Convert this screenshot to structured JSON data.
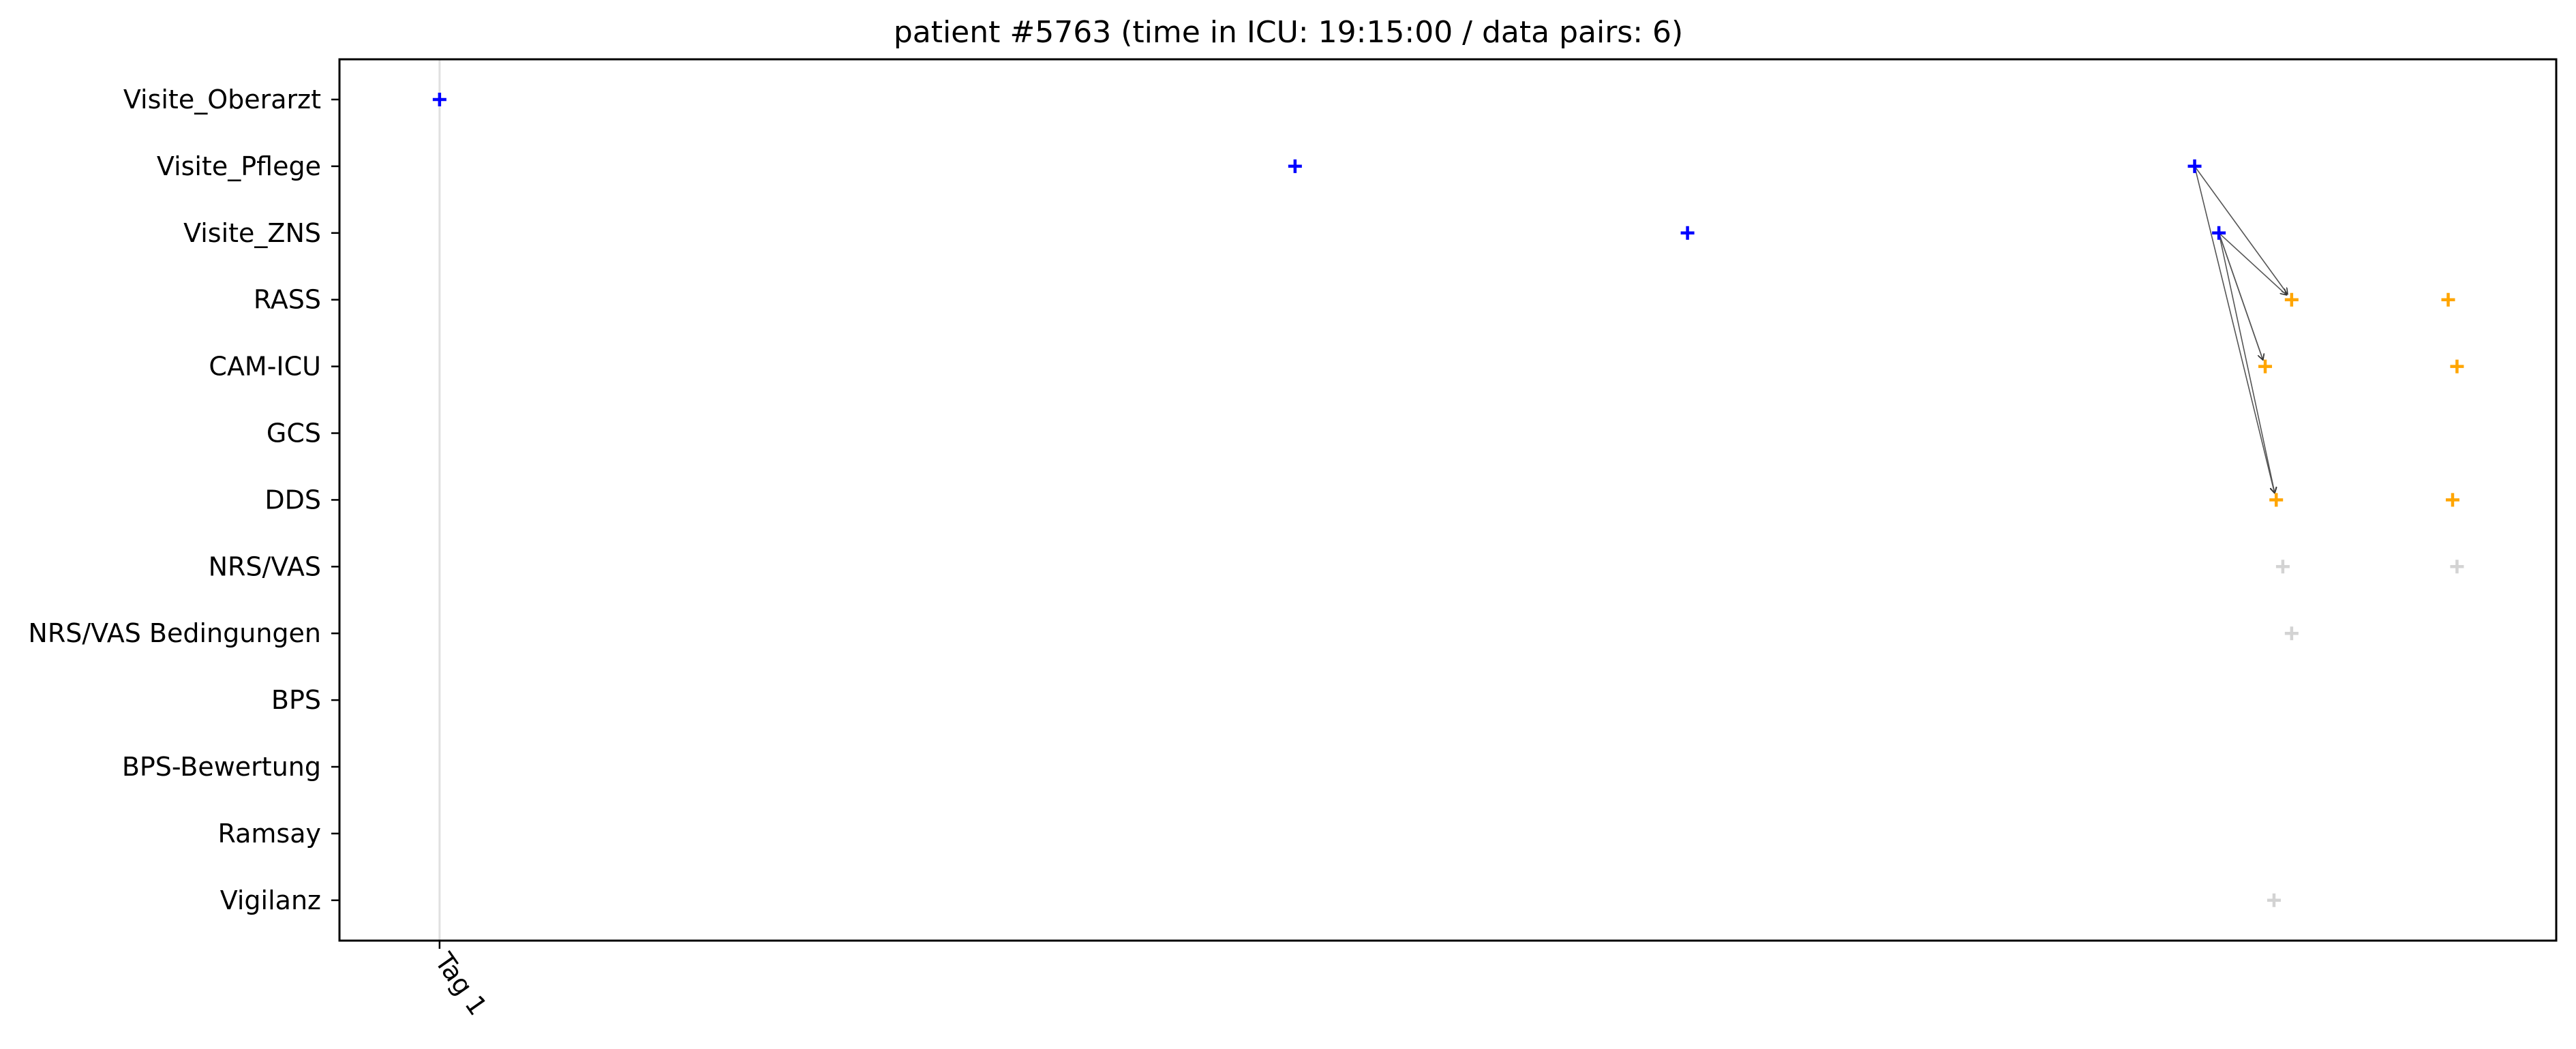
{
  "chart_data": {
    "type": "scatter",
    "title": "patient #5763 (time in ICU: 19:15:00 / data pairs: 6)",
    "xlabel": "",
    "ylabel": "",
    "x_unit": "hours since ICU admission",
    "xlim": [
      -2.27,
      48.0
    ],
    "x_ticks": [
      {
        "value": 0,
        "label": "Tag 1"
      }
    ],
    "categories": [
      "Visite_Oberarzt",
      "Visite_Pflege",
      "Visite_ZNS",
      "RASS",
      "CAM-ICU",
      "GCS",
      "DDS",
      "NRS/VAS",
      "NRS/VAS Bedingungen",
      "BPS",
      "BPS-Bewertung",
      "Ramsay",
      "Vigilanz"
    ],
    "grid": false,
    "legend": "none",
    "colors": {
      "visit": "#0000ff",
      "paired": "#ffa500",
      "other": "#d3d3d3",
      "arrow": "#555555",
      "day_line": "#e0e0e0"
    },
    "series": [
      {
        "color_key": "visit",
        "points": [
          {
            "x": 0.0,
            "y": "Visite_Oberarzt"
          },
          {
            "x": 19.4,
            "y": "Visite_Pflege"
          },
          {
            "x": 28.3,
            "y": "Visite_ZNS"
          },
          {
            "x": 39.8,
            "y": "Visite_Pflege"
          },
          {
            "x": 40.35,
            "y": "Visite_ZNS"
          }
        ]
      },
      {
        "color_key": "paired",
        "points": [
          {
            "x": 42.0,
            "y": "RASS"
          },
          {
            "x": 45.55,
            "y": "RASS"
          },
          {
            "x": 41.4,
            "y": "CAM-ICU"
          },
          {
            "x": 45.75,
            "y": "CAM-ICU"
          },
          {
            "x": 41.65,
            "y": "DDS"
          },
          {
            "x": 45.65,
            "y": "DDS"
          }
        ]
      },
      {
        "color_key": "other",
        "points": [
          {
            "x": 41.8,
            "y": "NRS/VAS"
          },
          {
            "x": 45.75,
            "y": "NRS/VAS"
          },
          {
            "x": 42.0,
            "y": "NRS/VAS Bedingungen"
          },
          {
            "x": 41.6,
            "y": "Vigilanz"
          }
        ]
      }
    ],
    "pairs": [
      {
        "from": {
          "x": 39.8,
          "y": "Visite_Pflege"
        },
        "to": {
          "x": 42.0,
          "y": "RASS"
        }
      },
      {
        "from": {
          "x": 39.8,
          "y": "Visite_Pflege"
        },
        "to": {
          "x": 41.65,
          "y": "DDS"
        }
      },
      {
        "from": {
          "x": 40.35,
          "y": "Visite_ZNS"
        },
        "to": {
          "x": 42.0,
          "y": "RASS"
        }
      },
      {
        "from": {
          "x": 40.35,
          "y": "Visite_ZNS"
        },
        "to": {
          "x": 41.4,
          "y": "CAM-ICU"
        }
      },
      {
        "from": {
          "x": 40.35,
          "y": "Visite_ZNS"
        },
        "to": {
          "x": 41.65,
          "y": "DDS"
        }
      },
      {
        "from": {
          "x": 40.35,
          "y": "Visite_ZNS"
        },
        "to": {
          "x": 41.4,
          "y": "CAM-ICU"
        }
      }
    ]
  }
}
